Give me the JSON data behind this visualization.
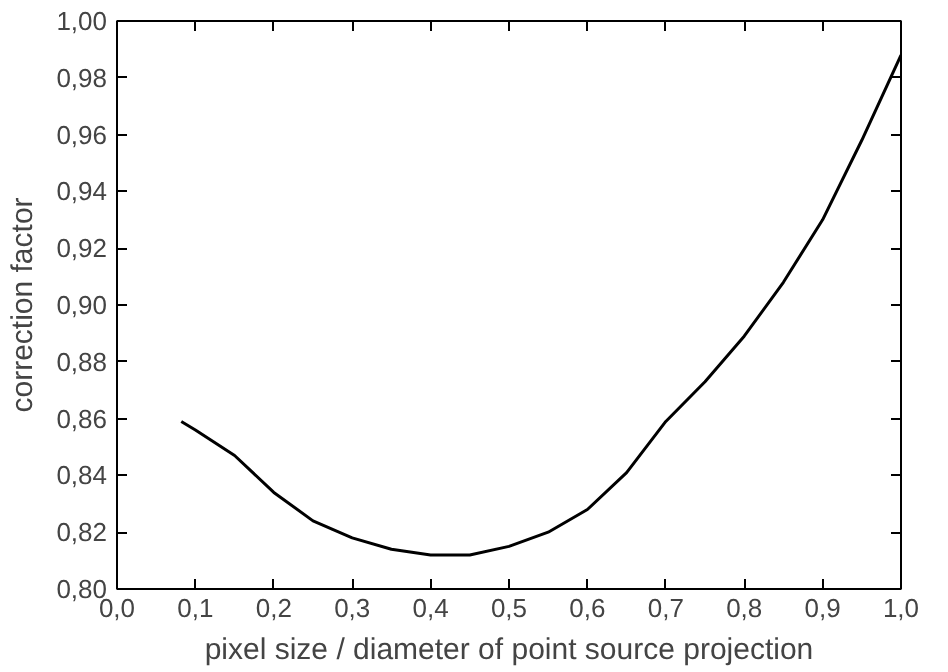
{
  "chart_data": {
    "type": "line",
    "xlabel": "pixel size / diameter of point source projection",
    "ylabel": "correction factor",
    "x": [
      0.082,
      0.1,
      0.15,
      0.2,
      0.25,
      0.3,
      0.35,
      0.4,
      0.45,
      0.5,
      0.55,
      0.6,
      0.65,
      0.7,
      0.75,
      0.8,
      0.85,
      0.9,
      0.95,
      1.0
    ],
    "series": [
      {
        "color": "#000000",
        "values": [
          0.859,
          0.856,
          0.847,
          0.834,
          0.824,
          0.818,
          0.814,
          0.812,
          0.812,
          0.815,
          0.82,
          0.828,
          0.841,
          0.859,
          0.873,
          0.889,
          0.908,
          0.93,
          0.958,
          0.988
        ]
      }
    ],
    "xlim": [
      0.0,
      1.0
    ],
    "ylim": [
      0.8,
      1.0
    ],
    "xticks": [
      {
        "value": 0.0,
        "label": "0,0"
      },
      {
        "value": 0.1,
        "label": "0,1"
      },
      {
        "value": 0.2,
        "label": "0,2"
      },
      {
        "value": 0.3,
        "label": "0,3"
      },
      {
        "value": 0.4,
        "label": "0,4"
      },
      {
        "value": 0.5,
        "label": "0,5"
      },
      {
        "value": 0.6,
        "label": "0,6"
      },
      {
        "value": 0.7,
        "label": "0,7"
      },
      {
        "value": 0.8,
        "label": "0,8"
      },
      {
        "value": 0.9,
        "label": "0,9"
      },
      {
        "value": 1.0,
        "label": "1,0"
      }
    ],
    "yticks": [
      {
        "value": 0.8,
        "label": "0,80"
      },
      {
        "value": 0.82,
        "label": "0,82"
      },
      {
        "value": 0.84,
        "label": "0,84"
      },
      {
        "value": 0.86,
        "label": "0,86"
      },
      {
        "value": 0.88,
        "label": "0,88"
      },
      {
        "value": 0.9,
        "label": "0,90"
      },
      {
        "value": 0.92,
        "label": "0,92"
      },
      {
        "value": 0.94,
        "label": "0,94"
      },
      {
        "value": 0.96,
        "label": "0,96"
      },
      {
        "value": 0.98,
        "label": "0,98"
      },
      {
        "value": 1.0,
        "label": "1,00"
      }
    ],
    "grid": false,
    "marker": "none",
    "line_style": "solid"
  }
}
